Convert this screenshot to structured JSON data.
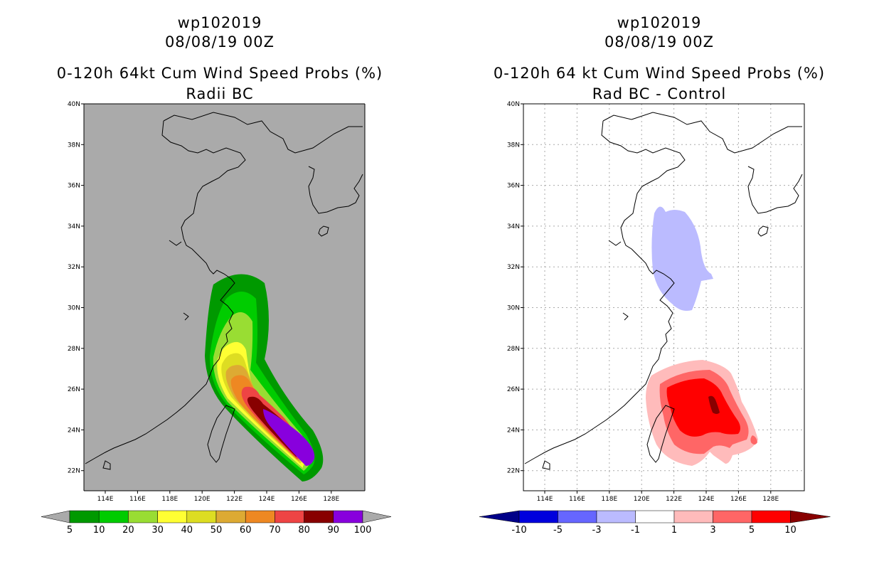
{
  "left": {
    "title1": "wp102019",
    "title2": "08/08/19 00Z",
    "title3": "0-120h 64kt Cum Wind Speed Probs (%)",
    "title4": "Radii BC",
    "colorbar": {
      "labels": [
        "5",
        "10",
        "20",
        "30",
        "40",
        "50",
        "60",
        "70",
        "80",
        "90",
        "100"
      ],
      "colors": [
        "#009900",
        "#00cc00",
        "#99dd33",
        "#ffff33",
        "#dddd22",
        "#ddaa33",
        "#ee8822",
        "#ee4444",
        "#880000",
        "#8800dd"
      ],
      "under_color": "#aaaaaa",
      "over_color": "#aaaaaa"
    }
  },
  "right": {
    "title1": "wp102019",
    "title2": "08/08/19 00Z",
    "title3": "0-120h 64 kt Cum Wind Speed Probs (%)",
    "title4": "Rad BC - Control",
    "colorbar": {
      "labels": [
        "-10",
        "-5",
        "-3",
        "-1",
        "1",
        "3",
        "5",
        "10"
      ],
      "colors": [
        "#0000dd",
        "#6666ff",
        "#bbbbff",
        "#ffffff",
        "#ffbbbb",
        "#ff6666",
        "#ff0000"
      ],
      "under_color": "#000088",
      "over_color": "#880000"
    }
  },
  "map": {
    "lat_labels": [
      "40N",
      "38N",
      "36N",
      "34N",
      "32N",
      "30N",
      "28N",
      "26N",
      "24N",
      "22N"
    ],
    "lon_labels": [
      "114E",
      "116E",
      "118E",
      "120E",
      "122E",
      "124E",
      "126E",
      "128E"
    ],
    "left_bg": "#aaaaaa",
    "right_bg": "#ffffff"
  }
}
